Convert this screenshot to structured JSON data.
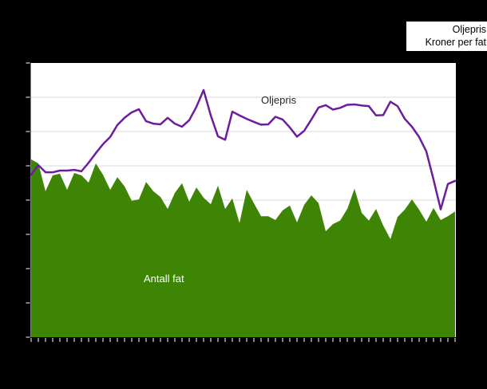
{
  "legend": {
    "title": "Oljepris",
    "subtitle": "Kroner per fat"
  },
  "annotations": {
    "line_label": "Oljepris",
    "area_label": "Antall fat"
  },
  "colors": {
    "background": "#000000",
    "plot_background": "#ffffff",
    "gridline": "#d9d9d9",
    "tick": "#ffffff",
    "area": "#3e8506",
    "line": "#6c1d9c",
    "line_label_color": "#262626",
    "area_label_color": "#ffffff"
  },
  "chart_data": {
    "type": "combo",
    "title": "",
    "xlabel": "",
    "ylabel": "",
    "axis_tick_labels_visible": false,
    "x_tick_count": 60,
    "grid": true,
    "gridline_intervals": 8,
    "ylim": [
      0,
      8
    ],
    "y_unit": "gridline units (axis labels not visible in image; 0 = x-axis, 8 = plot top)",
    "legend_position": "top-right",
    "series": [
      {
        "name": "Antall fat",
        "type": "area",
        "color": "#3e8506",
        "values": [
          5.19,
          5.07,
          4.26,
          4.72,
          4.77,
          4.3,
          4.79,
          4.72,
          4.51,
          5.07,
          4.74,
          4.3,
          4.67,
          4.4,
          3.98,
          4.02,
          4.53,
          4.26,
          4.09,
          3.74,
          4.21,
          4.49,
          3.95,
          4.37,
          4.07,
          3.88,
          4.42,
          3.74,
          4.05,
          3.33,
          4.3,
          3.91,
          3.53,
          3.53,
          3.42,
          3.7,
          3.84,
          3.35,
          3.86,
          4.14,
          3.91,
          3.09,
          3.3,
          3.4,
          3.74,
          4.33,
          3.63,
          3.4,
          3.74,
          3.26,
          2.86,
          3.51,
          3.72,
          4.02,
          3.72,
          3.37,
          3.77,
          3.42,
          3.53,
          3.67
        ]
      },
      {
        "name": "Oljepris (kroner per fat)",
        "type": "line",
        "color": "#6c1d9c",
        "values": [
          4.74,
          5.02,
          4.81,
          4.81,
          4.86,
          4.86,
          4.88,
          4.84,
          5.09,
          5.37,
          5.63,
          5.84,
          6.19,
          6.4,
          6.56,
          6.65,
          6.3,
          6.23,
          6.21,
          6.4,
          6.23,
          6.14,
          6.33,
          6.72,
          7.21,
          6.47,
          5.86,
          5.76,
          6.58,
          6.47,
          6.37,
          6.28,
          6.2,
          6.21,
          6.43,
          6.35,
          6.12,
          5.85,
          6.02,
          6.35,
          6.7,
          6.77,
          6.64,
          6.69,
          6.78,
          6.79,
          6.76,
          6.74,
          6.47,
          6.48,
          6.87,
          6.74,
          6.37,
          6.14,
          5.84,
          5.42,
          4.6,
          3.73,
          4.47,
          4.56
        ]
      }
    ]
  }
}
